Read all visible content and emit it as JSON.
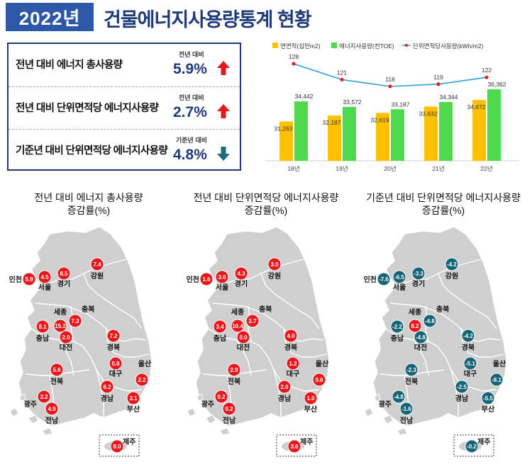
{
  "header": {
    "year": "2022년",
    "title": "건물에너지사용량통계 현황"
  },
  "summary": [
    {
      "label": "전년 대비 에너지 총사용량",
      "basis": "전년 대비",
      "value": "5.9%",
      "direction": "up"
    },
    {
      "label": "전년 대비 단위면적당 에너지사용량",
      "basis": "전년 대비",
      "value": "2.7%",
      "direction": "up"
    },
    {
      "label": "기준년 대비 단위면적당 에너지사용량",
      "basis": "기준년 대비",
      "value": "4.8%",
      "direction": "down"
    }
  ],
  "colors": {
    "up": "#e8171b",
    "down": "#1b6b7a",
    "area_bar": "#ffc000",
    "energy_bar": "#4cd94c",
    "intensity_line": "#2c9fd8",
    "intensity_marker": "#e8171b",
    "map_fill": "#cfcfcf",
    "map_stroke": "#ffffff",
    "circle_up": "#e8171b",
    "circle_down": "#166477"
  },
  "chart_data": {
    "type": "bar",
    "categories": [
      "18년",
      "19년",
      "20년",
      "21년",
      "22년"
    ],
    "series": [
      {
        "name": "연면적(십만m2)",
        "type": "bar",
        "values": [
          31263,
          32187,
          32619,
          33632,
          34672
        ],
        "labels": [
          "31,263",
          "32,187",
          "32,619",
          "33,632",
          "34,672"
        ]
      },
      {
        "name": "에너지사용량(천TOE)",
        "type": "bar",
        "values": [
          34442,
          33572,
          33187,
          34344,
          36362
        ],
        "labels": [
          "34,442",
          "33,572",
          "33,187",
          "34,344",
          "36,362"
        ]
      },
      {
        "name": "단위면적당사용량(kWh/m2)",
        "type": "line",
        "values": [
          128,
          121,
          118,
          119,
          122
        ],
        "labels": [
          "128",
          "121",
          "118",
          "119",
          "122"
        ]
      }
    ],
    "legend_position": "top"
  },
  "maps": [
    {
      "title_line1": "전년 대비 에너지 총사용량",
      "title_line2": "증감률(%)",
      "regions": [
        {
          "name": "인천",
          "value": "5.9"
        },
        {
          "name": "서울",
          "value": "4.5"
        },
        {
          "name": "경기",
          "value": "8.5"
        },
        {
          "name": "강원",
          "value": "7.4"
        },
        {
          "name": "세종",
          "value": "15.2"
        },
        {
          "name": "충북",
          "value": "7.3"
        },
        {
          "name": "충남",
          "value": "8.1"
        },
        {
          "name": "대전",
          "value": "2.0"
        },
        {
          "name": "경북",
          "value": "7.2"
        },
        {
          "name": "대구",
          "value": "0.8"
        },
        {
          "name": "울산",
          "value": "2.2"
        },
        {
          "name": "전북",
          "value": "5.6"
        },
        {
          "name": "경남",
          "value": "6.2"
        },
        {
          "name": "부산",
          "value": "3.1"
        },
        {
          "name": "광주",
          "value": "3.2"
        },
        {
          "name": "전남",
          "value": "4.9"
        },
        {
          "name": "제주",
          "value": "8.0"
        }
      ]
    },
    {
      "title_line1": "전년 대비 단위면적당 에너지사용량",
      "title_line2": "증감률(%)",
      "regions": [
        {
          "name": "인천",
          "value": "1.6"
        },
        {
          "name": "서울",
          "value": "3.0"
        },
        {
          "name": "경기",
          "value": "4.3"
        },
        {
          "name": "강원",
          "value": "3.0"
        },
        {
          "name": "세종",
          "value": "10.4"
        },
        {
          "name": "충북",
          "value": "2.7"
        },
        {
          "name": "충남",
          "value": "3.4"
        },
        {
          "name": "대전",
          "value": "0.0"
        },
        {
          "name": "경북",
          "value": "4.0"
        },
        {
          "name": "대구",
          "value": "1.2"
        },
        {
          "name": "울산",
          "value": "0.6"
        },
        {
          "name": "전북",
          "value": "2.9"
        },
        {
          "name": "경남",
          "value": "2.0"
        },
        {
          "name": "부산",
          "value": "1.0"
        },
        {
          "name": "광주",
          "value": "0.2"
        },
        {
          "name": "전남",
          "value": "0.2"
        },
        {
          "name": "제주",
          "value": "3.6"
        }
      ]
    },
    {
      "title_line1": "기준년 대비 단위면적당 에너지사용량",
      "title_line2": "증감률(%)",
      "regions": [
        {
          "name": "인천",
          "value": "-7.6"
        },
        {
          "name": "서울",
          "value": "-6.5"
        },
        {
          "name": "경기",
          "value": "-3.3"
        },
        {
          "name": "강원",
          "value": "-4.2"
        },
        {
          "name": "세종",
          "value": "8.2"
        },
        {
          "name": "충북",
          "value": "-4.8"
        },
        {
          "name": "충남",
          "value": "-2.2"
        },
        {
          "name": "대전",
          "value": "-4.8"
        },
        {
          "name": "경북",
          "value": "-4.2"
        },
        {
          "name": "대구",
          "value": "-5.1"
        },
        {
          "name": "울산",
          "value": "-8.1"
        },
        {
          "name": "전북",
          "value": "-2.3"
        },
        {
          "name": "경남",
          "value": "-2.5"
        },
        {
          "name": "부산",
          "value": "-5.5"
        },
        {
          "name": "광주",
          "value": "-4.8"
        },
        {
          "name": "전남",
          "value": "-1.6"
        },
        {
          "name": "제주",
          "value": "-0.2"
        }
      ]
    }
  ]
}
